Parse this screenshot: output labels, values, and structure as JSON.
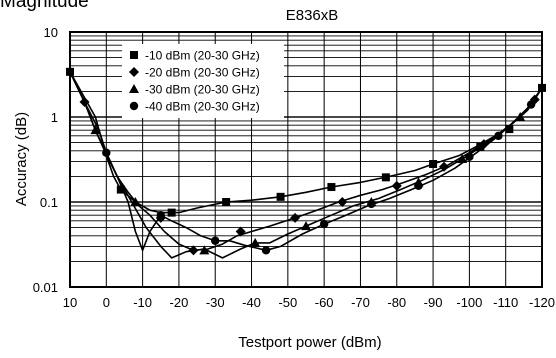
{
  "header_cropped_text": "Magnitude",
  "chart_data": {
    "type": "line",
    "title": "E836xB",
    "xlabel": "Testport power (dBm)",
    "ylabel": "Accuracy (dB)",
    "y_scale": "log",
    "ylim": [
      0.01,
      10
    ],
    "xlim": [
      10,
      -120
    ],
    "x_ticks": [
      10,
      0,
      -10,
      -20,
      -30,
      -40,
      -50,
      -60,
      -70,
      -80,
      -90,
      -100,
      -110,
      -120
    ],
    "x_tick_labels": [
      "10",
      "0",
      "-10",
      "-20",
      "-30",
      "-40",
      "-50",
      "-60",
      "-70",
      "-80",
      "-90",
      "-100",
      "-110",
      "-120"
    ],
    "y_tick_labels": [
      {
        "value": 10,
        "label": "10"
      },
      {
        "value": 1,
        "label": "1"
      },
      {
        "value": 0.1,
        "label": "0.1"
      },
      {
        "value": 0.01,
        "label": "0.01"
      }
    ],
    "grid": true,
    "legend_position": "top-left",
    "series": [
      {
        "name": "-10 dBm (20-30 GHz)",
        "marker": "square",
        "line": [
          [
            10,
            3.4
          ],
          [
            3,
            1.0
          ],
          [
            0,
            0.35
          ],
          [
            -2,
            0.2
          ],
          [
            -4,
            0.14
          ],
          [
            -8,
            0.1
          ],
          [
            -12,
            0.08
          ],
          [
            -15,
            0.075
          ],
          [
            -20,
            0.075
          ],
          [
            -25,
            0.085
          ],
          [
            -33,
            0.1
          ],
          [
            -40,
            0.105
          ],
          [
            -48,
            0.115
          ],
          [
            -55,
            0.13
          ],
          [
            -62,
            0.15
          ],
          [
            -70,
            0.17
          ],
          [
            -78,
            0.2
          ],
          [
            -85,
            0.235
          ],
          [
            -90,
            0.28
          ],
          [
            -97,
            0.35
          ],
          [
            -102,
            0.45
          ],
          [
            -108,
            0.63
          ],
          [
            -112,
            0.85
          ],
          [
            -116,
            1.2
          ],
          [
            -120,
            2.2
          ]
        ],
        "markers": [
          [
            10,
            3.4
          ],
          [
            -4,
            0.14
          ],
          [
            -18,
            0.075
          ],
          [
            -33,
            0.1
          ],
          [
            -48,
            0.115
          ],
          [
            -62,
            0.15
          ],
          [
            -77,
            0.195
          ],
          [
            -90,
            0.28
          ],
          [
            -103,
            0.45
          ],
          [
            -111,
            0.72
          ],
          [
            -120,
            2.2
          ]
        ]
      },
      {
        "name": "-20 dBm (20-30 GHz)",
        "marker": "diamond",
        "line": [
          [
            10,
            3.4
          ],
          [
            6,
            1.5
          ],
          [
            2,
            0.7
          ],
          [
            0,
            0.38
          ],
          [
            -3,
            0.2
          ],
          [
            -6,
            0.13
          ],
          [
            -9,
            0.09
          ],
          [
            -12,
            0.07
          ],
          [
            -16,
            0.045
          ],
          [
            -20,
            0.032
          ],
          [
            -24,
            0.027
          ],
          [
            -28,
            0.028
          ],
          [
            -32,
            0.032
          ],
          [
            -36,
            0.04
          ],
          [
            -40,
            0.045
          ],
          [
            -45,
            0.052
          ],
          [
            -52,
            0.065
          ],
          [
            -58,
            0.08
          ],
          [
            -64,
            0.1
          ],
          [
            -70,
            0.12
          ],
          [
            -76,
            0.14
          ],
          [
            -82,
            0.17
          ],
          [
            -88,
            0.21
          ],
          [
            -94,
            0.27
          ],
          [
            -100,
            0.38
          ],
          [
            -106,
            0.55
          ],
          [
            -112,
            0.85
          ],
          [
            -116,
            1.25
          ],
          [
            -120,
            2.2
          ]
        ],
        "markers": [
          [
            6,
            1.5
          ],
          [
            -15,
            0.065
          ],
          [
            -24,
            0.027
          ],
          [
            -37,
            0.045
          ],
          [
            -52,
            0.065
          ],
          [
            -65,
            0.1
          ],
          [
            -80,
            0.155
          ],
          [
            -93,
            0.26
          ],
          [
            -104,
            0.48
          ],
          [
            -118,
            1.6
          ]
        ]
      },
      {
        "name": "-30 dBm (20-30 GHz)",
        "marker": "triangle",
        "line": [
          [
            10,
            3.4
          ],
          [
            6,
            1.5
          ],
          [
            3,
            0.7
          ],
          [
            0,
            0.36
          ],
          [
            -3,
            0.2
          ],
          [
            -7,
            0.1
          ],
          [
            -11,
            0.05
          ],
          [
            -15,
            0.03
          ],
          [
            -18,
            0.022
          ],
          [
            -22,
            0.026
          ],
          [
            -27,
            0.028
          ],
          [
            -32,
            0.022
          ],
          [
            -37,
            0.028
          ],
          [
            -41,
            0.033
          ],
          [
            -45,
            0.033
          ],
          [
            -50,
            0.042
          ],
          [
            -55,
            0.052
          ],
          [
            -62,
            0.07
          ],
          [
            -68,
            0.09
          ],
          [
            -75,
            0.11
          ],
          [
            -81,
            0.14
          ],
          [
            -87,
            0.18
          ],
          [
            -93,
            0.24
          ],
          [
            -99,
            0.34
          ],
          [
            -105,
            0.5
          ],
          [
            -111,
            0.78
          ],
          [
            -115,
            1.1
          ],
          [
            -120,
            2.2
          ]
        ],
        "markers": [
          [
            3,
            0.7
          ],
          [
            -8,
            0.1
          ],
          [
            -27,
            0.027
          ],
          [
            -41,
            0.033
          ],
          [
            -55,
            0.052
          ],
          [
            -73,
            0.1
          ],
          [
            -86,
            0.17
          ],
          [
            -98,
            0.32
          ],
          [
            -114,
            1.0
          ]
        ]
      },
      {
        "name": "-40 dBm (20-30 GHz)",
        "marker": "circle",
        "line": [
          [
            10,
            3.4
          ],
          [
            6,
            1.5
          ],
          [
            3,
            0.7
          ],
          [
            0,
            0.38
          ],
          [
            -3,
            0.2
          ],
          [
            -6,
            0.1
          ],
          [
            -8,
            0.045
          ],
          [
            -10,
            0.027
          ],
          [
            -12,
            0.045
          ],
          [
            -15,
            0.07
          ],
          [
            -18,
            0.06
          ],
          [
            -22,
            0.05
          ],
          [
            -26,
            0.04
          ],
          [
            -30,
            0.035
          ],
          [
            -34,
            0.035
          ],
          [
            -38,
            0.031
          ],
          [
            -44,
            0.027
          ],
          [
            -48,
            0.03
          ],
          [
            -54,
            0.042
          ],
          [
            -60,
            0.055
          ],
          [
            -66,
            0.07
          ],
          [
            -72,
            0.09
          ],
          [
            -78,
            0.11
          ],
          [
            -84,
            0.14
          ],
          [
            -90,
            0.18
          ],
          [
            -96,
            0.25
          ],
          [
            -102,
            0.38
          ],
          [
            -108,
            0.6
          ],
          [
            -113,
            0.95
          ],
          [
            -117,
            1.4
          ],
          [
            -120,
            2.2
          ]
        ],
        "markers": [
          [
            0,
            0.38
          ],
          [
            -15,
            0.07
          ],
          [
            -30,
            0.035
          ],
          [
            -44,
            0.027
          ],
          [
            -60,
            0.055
          ],
          [
            -73,
            0.095
          ],
          [
            -86,
            0.155
          ],
          [
            -100,
            0.34
          ],
          [
            -108,
            0.6
          ],
          [
            -117,
            1.4
          ]
        ]
      }
    ]
  }
}
